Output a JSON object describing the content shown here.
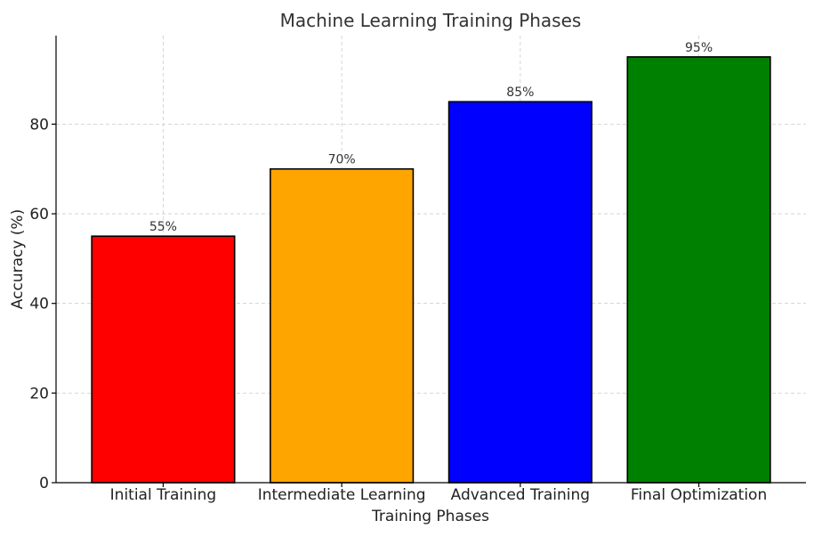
{
  "chart_data": {
    "type": "bar",
    "title": "Machine Learning Training Phases",
    "xlabel": "Training Phases",
    "ylabel": "Accuracy (%)",
    "categories": [
      "Initial Training",
      "Intermediate Learning",
      "Advanced Training",
      "Final Optimization"
    ],
    "values": [
      55,
      70,
      85,
      95
    ],
    "data_labels": [
      "55%",
      "70%",
      "85%",
      "95%"
    ],
    "colors": [
      "#ff0000",
      "#ffa500",
      "#0000ff",
      "#008000"
    ],
    "ylim": [
      0,
      99.75
    ],
    "yticks": [
      0,
      20,
      40,
      60,
      80
    ],
    "grid": true,
    "legend": "none"
  }
}
